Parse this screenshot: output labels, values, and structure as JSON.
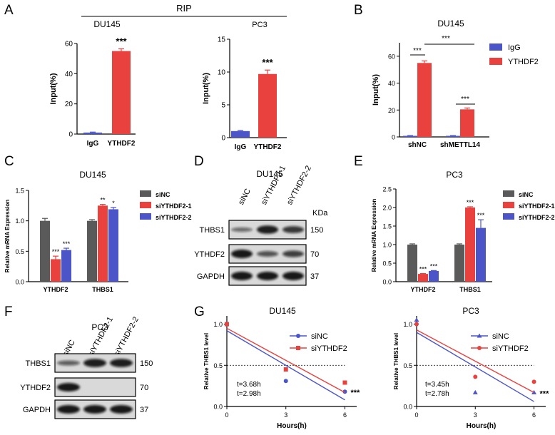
{
  "colors": {
    "gray": "#5a5a5a",
    "red": "#e8413e",
    "blue": "#4b55c8",
    "red_text": "#e8413e",
    "blue_text": "#4b55c8"
  },
  "panels": {
    "A": "A",
    "B": "B",
    "C": "C",
    "D": "D",
    "E": "E",
    "F": "F",
    "G": "G"
  },
  "ripLabel": "RIP",
  "chart_data": [
    {
      "id": "A1",
      "type": "bar",
      "title": "DU145",
      "ylabel": "Input(%)",
      "categories": [
        "IgG",
        "YTHDF2"
      ],
      "values": [
        1,
        55
      ],
      "errors": [
        0.3,
        1.5
      ],
      "ylim": [
        0,
        60
      ],
      "yticks": [
        0,
        20,
        40,
        60
      ],
      "sig": "***"
    },
    {
      "id": "A2",
      "type": "bar",
      "title": "PC3",
      "ylabel": "Input(%)",
      "categories": [
        "IgG",
        "YTHDF2"
      ],
      "values": [
        1.0,
        9.7
      ],
      "errors": [
        0.1,
        0.6
      ],
      "ylim": [
        0,
        15
      ],
      "yticks": [
        0,
        5,
        10,
        15
      ],
      "sig": "***"
    },
    {
      "id": "B",
      "type": "bar",
      "title": "DU145",
      "ylabel": "Input(%)",
      "groups": [
        "shNC",
        "shMETTL14"
      ],
      "series": [
        {
          "name": "IgG",
          "values": [
            0.8,
            0.8
          ]
        },
        {
          "name": "YTHDF2",
          "values": [
            55,
            20.5
          ]
        }
      ],
      "errors": [
        [
          0.2,
          0.2
        ],
        [
          1.5,
          1.0
        ]
      ],
      "ylim": [
        0,
        70
      ],
      "yticks": [
        0,
        20,
        40,
        60
      ],
      "sig": [
        "***",
        "***",
        "***"
      ]
    },
    {
      "id": "C",
      "type": "bar",
      "title": "DU145",
      "ylabel": "Relative mRNA Expression",
      "groups": [
        "YTHDF2",
        "THBS1"
      ],
      "series": [
        {
          "name": "siNC",
          "values": [
            1.0,
            1.0
          ]
        },
        {
          "name": "siYTHDF2-1",
          "values": [
            0.37,
            1.25
          ]
        },
        {
          "name": "siYTHDF2-2",
          "values": [
            0.52,
            1.19
          ]
        }
      ],
      "errors": [
        [
          0.04,
          0.02
        ],
        [
          0.05,
          0.02
        ],
        [
          0.03,
          0.03
        ]
      ],
      "ylim": [
        0,
        1.5
      ],
      "yticks": [
        "0.0",
        "0.5",
        "1.0",
        "1.5"
      ],
      "sig": [
        [
          "",
          "***",
          "***"
        ],
        [
          "",
          "**",
          "*"
        ]
      ]
    },
    {
      "id": "E",
      "type": "bar",
      "title": "PC3",
      "ylabel": "Relative mRNA Expression",
      "groups": [
        "YTHDF2",
        "THBS1"
      ],
      "series": [
        {
          "name": "siNC",
          "values": [
            1.0,
            1.0
          ]
        },
        {
          "name": "siYTHDF2-1",
          "values": [
            0.21,
            2.0
          ]
        },
        {
          "name": "siYTHDF2-2",
          "values": [
            0.29,
            1.45
          ]
        }
      ],
      "errors": [
        [
          0.02,
          0.02
        ],
        [
          0.01,
          0.02
        ],
        [
          0.01,
          0.22
        ]
      ],
      "ylim": [
        0,
        2.5
      ],
      "yticks": [
        "0.0",
        "0.5",
        "1.0",
        "1.5",
        "2.0",
        "2.5"
      ],
      "sig": [
        [
          "",
          "***",
          "***"
        ],
        [
          "",
          "***",
          "***"
        ]
      ]
    },
    {
      "id": "G1",
      "type": "line",
      "title": "DU145",
      "xlabel": "Hours(h)",
      "ylabel": "Relative THBS1 level",
      "xlim": [
        0,
        6.6
      ],
      "ylim": [
        0,
        1.1
      ],
      "xticks": [
        0,
        3,
        6
      ],
      "yticks": [
        "0.0",
        "0.5",
        "1.0"
      ],
      "series": [
        {
          "name": "siNC",
          "points": [
            [
              0,
              1.0
            ],
            [
              3,
              0.31
            ],
            [
              6,
              0.18
            ]
          ],
          "fit": [
            [
              0,
              0.92
            ],
            [
              6,
              0.08
            ]
          ],
          "t": "t=2.98h"
        },
        {
          "name": "siYTHDF2",
          "points": [
            [
              0,
              1.0
            ],
            [
              3,
              0.45
            ],
            [
              6,
              0.29
            ]
          ],
          "fit": [
            [
              0,
              0.95
            ],
            [
              6,
              0.17
            ]
          ],
          "t": "t=3.68h"
        }
      ],
      "sig": "***",
      "ref": 0.5
    },
    {
      "id": "G2",
      "type": "line",
      "title": "PC3",
      "xlabel": "Hours(h)",
      "ylabel": "Relative THBS1 level",
      "xlim": [
        0,
        6.6
      ],
      "ylim": [
        0,
        1.1
      ],
      "xticks": [
        0,
        3,
        6
      ],
      "yticks": [
        "0.0",
        "0.5",
        "1.0"
      ],
      "series": [
        {
          "name": "siNC",
          "points": [
            [
              0,
              1.05
            ],
            [
              3,
              0.17
            ],
            [
              6,
              0.17
            ]
          ],
          "fit": [
            [
              0,
              0.9
            ],
            [
              6,
              0.06
            ]
          ],
          "t": "t=2.78h"
        },
        {
          "name": "siYTHDF2",
          "points": [
            [
              0,
              1.0
            ],
            [
              3,
              0.36
            ],
            [
              6,
              0.3
            ]
          ],
          "fit": [
            [
              0,
              0.93
            ],
            [
              6,
              0.17
            ]
          ],
          "t": "t=3.45h"
        }
      ],
      "sig": "***",
      "ref": 0.5
    }
  ],
  "blots": {
    "D": {
      "title": "DU145",
      "lanes": [
        "siNC",
        "siYTHDF2-1",
        "siYTHDF2-2"
      ],
      "kda": "KDa",
      "rows": [
        {
          "label": "THBS1",
          "kda": "150"
        },
        {
          "label": "YTHDF2",
          "kda": "70"
        },
        {
          "label": "GAPDH",
          "kda": "37"
        }
      ]
    },
    "F": {
      "title": "PC3",
      "lanes": [
        "siNC",
        "siYTHDF2-1",
        "siYTHDF2-2"
      ],
      "kda": "KDa",
      "rows": [
        {
          "label": "THBS1",
          "kda": "150"
        },
        {
          "label": "YTHDF2",
          "kda": "70"
        },
        {
          "label": "GAPDH",
          "kda": "37"
        }
      ]
    }
  }
}
